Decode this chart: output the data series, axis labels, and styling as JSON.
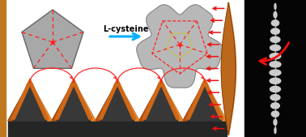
{
  "bg_color": "#ffffff",
  "orange_bar_color": "#c07820",
  "pentagon_fill": "#a8a8a8",
  "pentagon_edge": "#666666",
  "dashed_red": "#ff2020",
  "dashed_yellow": "#c8c820",
  "arrow_blue": "#00b0ff",
  "arrow_red": "#ee1010",
  "black_bg": "#050505",
  "dark_gray": "#2e2e2e",
  "wave_dark": "#252525",
  "wave_orange_dark": "#b05010",
  "wave_orange_mid": "#d06818",
  "wave_orange_light": "#e88828",
  "spindle_color": "#b86010",
  "title_text": "L-cysteine",
  "figsize": [
    3.78,
    1.69
  ],
  "dpi": 100
}
